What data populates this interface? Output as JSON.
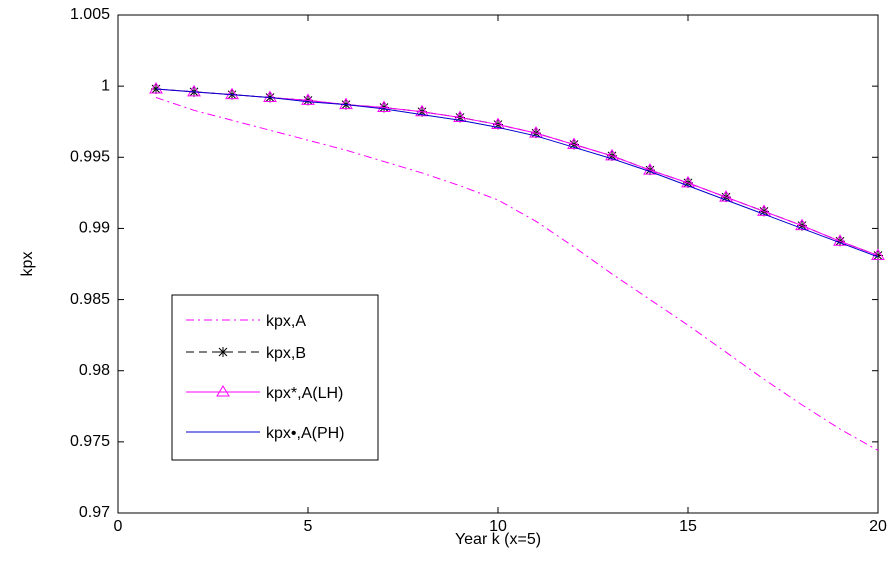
{
  "chart_data": {
    "type": "line",
    "x_label": "Year k (x=5)",
    "y_label": "kpx",
    "x": [
      1,
      2,
      3,
      4,
      5,
      6,
      7,
      8,
      9,
      10,
      11,
      12,
      13,
      14,
      15,
      16,
      17,
      18,
      19,
      20
    ],
    "xlim": [
      0,
      20
    ],
    "xticks": [
      0,
      5,
      10,
      15,
      20
    ],
    "ylim": [
      0.97,
      1.005
    ],
    "yticks": [
      0.97,
      0.975,
      0.98,
      0.985,
      0.99,
      0.995,
      1,
      1.005
    ],
    "legend": "lower-left",
    "series": [
      {
        "name": "kpx,A",
        "color": "#ff00ff",
        "dash": "dashdot",
        "marker": "none",
        "values": [
          0.9992,
          0.9983,
          0.9976,
          0.9969,
          0.9962,
          0.9955,
          0.9947,
          0.9939,
          0.993,
          0.992,
          0.9905,
          0.9887,
          0.9868,
          0.985,
          0.9832,
          0.9813,
          0.9794,
          0.9776,
          0.9759,
          0.9744
        ]
      },
      {
        "name": "kpx,B",
        "color": "#000000",
        "dash": "dashed",
        "marker": "star",
        "values": [
          0.9998,
          0.9996,
          0.9994,
          0.9992,
          0.999,
          0.9987,
          0.9985,
          0.9982,
          0.9978,
          0.9973,
          0.9967,
          0.9959,
          0.9951,
          0.9941,
          0.9932,
          0.9922,
          0.9912,
          0.9902,
          0.9891,
          0.9881
        ]
      },
      {
        "name": "kpx*,A(LH)",
        "color": "#ff00ff",
        "dash": "solid",
        "marker": "triangle",
        "values": [
          0.9998,
          0.9996,
          0.9994,
          0.9992,
          0.999,
          0.9987,
          0.9985,
          0.9982,
          0.9978,
          0.9973,
          0.9967,
          0.9959,
          0.9951,
          0.9941,
          0.9932,
          0.9922,
          0.9912,
          0.9902,
          0.9891,
          0.9881
        ]
      },
      {
        "name": "kpx•,A(PH)",
        "color": "#0000cc",
        "dash": "solid",
        "marker": "none",
        "values": [
          0.9998,
          0.9996,
          0.9994,
          0.9992,
          0.9989,
          0.9987,
          0.9984,
          0.998,
          0.9976,
          0.9971,
          0.9965,
          0.9957,
          0.9949,
          0.994,
          0.993,
          0.992,
          0.991,
          0.99,
          0.989,
          0.988
        ]
      }
    ]
  }
}
